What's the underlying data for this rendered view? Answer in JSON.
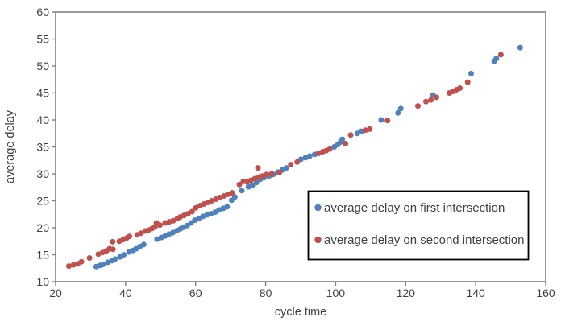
{
  "figure": {
    "background": "#ffffff",
    "border_color": "#7f7f7f",
    "text_color": "#3f3f3f"
  },
  "legend": {
    "items": [
      {
        "label": "average delay on first intersection",
        "color": "#4F81BD"
      },
      {
        "label": "average delay on second intersection",
        "color": "#C0504D"
      }
    ]
  },
  "chart_data": {
    "type": "scatter",
    "title": "",
    "xlabel": "cycle time",
    "ylabel": "average delay",
    "xlim": [
      20,
      160
    ],
    "ylim": [
      10,
      60
    ],
    "x_ticks": [
      20,
      40,
      60,
      80,
      100,
      120,
      140,
      160
    ],
    "y_ticks": [
      10,
      15,
      20,
      25,
      30,
      35,
      40,
      45,
      50,
      55,
      60
    ],
    "grid": false,
    "legend_position": "inside-lower-right",
    "marker": "circle",
    "series": [
      {
        "name": "average delay on first intersection",
        "color": "#4F81BD",
        "points": [
          [
            31.6,
            12.8
          ],
          [
            32.6,
            13.0
          ],
          [
            33.5,
            13.2
          ],
          [
            34.9,
            13.6
          ],
          [
            36.1,
            13.9
          ],
          [
            37.0,
            14.2
          ],
          [
            38.4,
            14.6
          ],
          [
            39.5,
            15.0
          ],
          [
            41.0,
            15.5
          ],
          [
            42.2,
            15.8
          ],
          [
            43.0,
            16.1
          ],
          [
            44.1,
            16.5
          ],
          [
            45.2,
            16.9
          ],
          [
            49.0,
            17.9
          ],
          [
            50.2,
            18.2
          ],
          [
            51.3,
            18.5
          ],
          [
            52.4,
            18.8
          ],
          [
            53.5,
            19.1
          ],
          [
            54.7,
            19.5
          ],
          [
            55.7,
            19.8
          ],
          [
            56.6,
            20.1
          ],
          [
            57.6,
            20.4
          ],
          [
            58.7,
            20.9
          ],
          [
            59.8,
            21.4
          ],
          [
            60.9,
            21.7
          ],
          [
            62.1,
            22.1
          ],
          [
            63.3,
            22.4
          ],
          [
            64.4,
            22.6
          ],
          [
            65.6,
            22.9
          ],
          [
            66.7,
            23.3
          ],
          [
            67.9,
            23.6
          ],
          [
            69.0,
            23.9
          ],
          [
            70.3,
            25.1
          ],
          [
            71.2,
            25.7
          ],
          [
            73.2,
            26.9
          ],
          [
            75.1,
            27.6
          ],
          [
            76.2,
            27.9
          ],
          [
            77.4,
            28.4
          ],
          [
            78.5,
            29.0
          ],
          [
            79.6,
            29.3
          ],
          [
            81.0,
            29.6
          ],
          [
            82.2,
            29.9
          ],
          [
            83.5,
            30.3
          ],
          [
            84.7,
            30.7
          ],
          [
            85.9,
            31.1
          ],
          [
            90.1,
            32.7
          ],
          [
            91.4,
            33.0
          ],
          [
            92.6,
            33.3
          ],
          [
            94.0,
            33.6
          ],
          [
            99.6,
            35.0
          ],
          [
            100.6,
            35.4
          ],
          [
            101.4,
            35.9
          ],
          [
            101.9,
            36.4
          ],
          [
            106.2,
            37.5
          ],
          [
            107.3,
            37.9
          ],
          [
            113.0,
            40.0
          ],
          [
            117.8,
            41.3
          ],
          [
            118.6,
            42.1
          ],
          [
            127.8,
            44.6
          ],
          [
            138.7,
            48.6
          ],
          [
            145.3,
            50.9
          ],
          [
            145.9,
            51.4
          ],
          [
            152.7,
            53.4
          ]
        ]
      },
      {
        "name": "average delay on second intersection",
        "color": "#C0504D",
        "points": [
          [
            23.8,
            12.9
          ],
          [
            25.1,
            13.1
          ],
          [
            26.3,
            13.3
          ],
          [
            27.4,
            13.7
          ],
          [
            29.7,
            14.4
          ],
          [
            32.2,
            15.1
          ],
          [
            33.4,
            15.4
          ],
          [
            34.5,
            15.7
          ],
          [
            35.4,
            16.1
          ],
          [
            36.4,
            16.0
          ],
          [
            36.3,
            17.4
          ],
          [
            38.2,
            17.5
          ],
          [
            39.3,
            17.8
          ],
          [
            40.3,
            18.1
          ],
          [
            41.1,
            18.4
          ],
          [
            43.3,
            18.7
          ],
          [
            44.4,
            19.0
          ],
          [
            45.6,
            19.4
          ],
          [
            46.6,
            19.6
          ],
          [
            47.6,
            19.9
          ],
          [
            48.4,
            20.2
          ],
          [
            48.8,
            20.9
          ],
          [
            49.8,
            20.5
          ],
          [
            51.3,
            20.9
          ],
          [
            52.5,
            21.1
          ],
          [
            53.6,
            21.3
          ],
          [
            54.8,
            21.7
          ],
          [
            55.6,
            22.0
          ],
          [
            56.7,
            22.3
          ],
          [
            57.8,
            22.6
          ],
          [
            59.0,
            23.0
          ],
          [
            60.1,
            23.7
          ],
          [
            61.3,
            24.1
          ],
          [
            62.4,
            24.4
          ],
          [
            63.5,
            24.7
          ],
          [
            64.6,
            25.0
          ],
          [
            65.8,
            25.3
          ],
          [
            66.9,
            25.6
          ],
          [
            68.1,
            25.9
          ],
          [
            69.2,
            26.2
          ],
          [
            70.4,
            26.5
          ],
          [
            72.5,
            28.0
          ],
          [
            73.6,
            28.6
          ],
          [
            74.7,
            28.5
          ],
          [
            75.8,
            28.8
          ],
          [
            76.9,
            29.1
          ],
          [
            77.8,
            31.1
          ],
          [
            78.1,
            29.4
          ],
          [
            79.1,
            29.6
          ],
          [
            80.3,
            29.9
          ],
          [
            81.7,
            30.0
          ],
          [
            84.0,
            30.3
          ],
          [
            87.2,
            31.7
          ],
          [
            89.0,
            32.2
          ],
          [
            95.1,
            33.8
          ],
          [
            96.3,
            34.1
          ],
          [
            97.3,
            34.3
          ],
          [
            98.3,
            34.6
          ],
          [
            102.8,
            35.6
          ],
          [
            104.3,
            37.2
          ],
          [
            108.5,
            38.1
          ],
          [
            109.7,
            38.3
          ],
          [
            114.8,
            39.9
          ],
          [
            123.5,
            42.6
          ],
          [
            125.8,
            43.4
          ],
          [
            127.2,
            43.7
          ],
          [
            128.8,
            44.2
          ],
          [
            132.5,
            45.0
          ],
          [
            133.5,
            45.3
          ],
          [
            134.5,
            45.6
          ],
          [
            135.5,
            45.9
          ],
          [
            137.7,
            47.0
          ],
          [
            147.2,
            52.1
          ]
        ]
      }
    ]
  }
}
